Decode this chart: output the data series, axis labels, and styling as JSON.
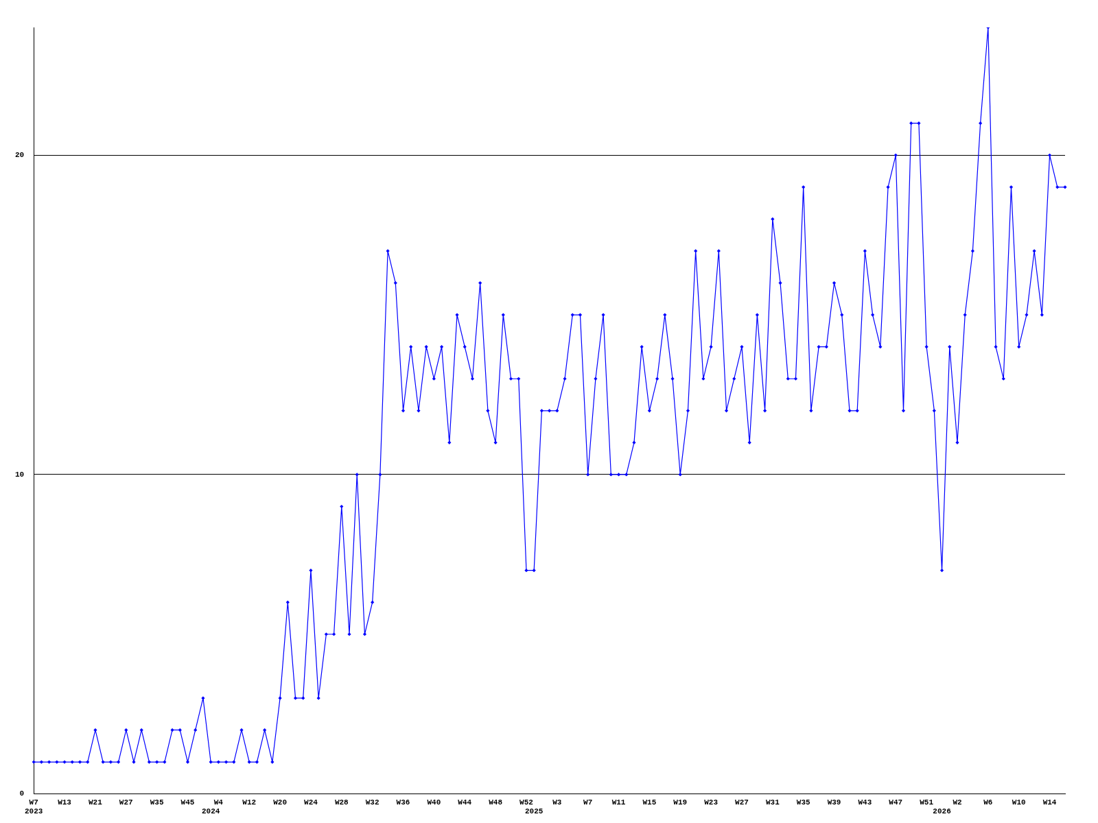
{
  "chart_data": {
    "type": "line",
    "categories": [
      "W7\n2023",
      null,
      null,
      null,
      "W13",
      null,
      null,
      null,
      "W21",
      null,
      null,
      null,
      "W27",
      null,
      null,
      null,
      "W35",
      null,
      null,
      null,
      "W45",
      null,
      null,
      "\n2024",
      "W4",
      null,
      null,
      null,
      "W12",
      null,
      null,
      null,
      "W20",
      null,
      null,
      null,
      "W24",
      null,
      null,
      null,
      "W28",
      null,
      null,
      null,
      "W32",
      null,
      null,
      null,
      "W36",
      null,
      null,
      null,
      "W40",
      null,
      null,
      null,
      "W44",
      null,
      null,
      null,
      "W48",
      null,
      null,
      null,
      "W52",
      "\n2025",
      null,
      null,
      "W3",
      null,
      null,
      null,
      "W7",
      null,
      null,
      null,
      "W11",
      null,
      null,
      null,
      "W15",
      null,
      null,
      null,
      "W19",
      null,
      null,
      null,
      "W23",
      null,
      null,
      null,
      "W27",
      null,
      null,
      null,
      "W31",
      null,
      null,
      null,
      "W35",
      null,
      null,
      null,
      "W39",
      null,
      null,
      null,
      "W43",
      null,
      null,
      null,
      "W47",
      null,
      null,
      null,
      "W51",
      null,
      "\n2026",
      null,
      "W2",
      null,
      null,
      null,
      "W6",
      null,
      null,
      null,
      "W10",
      null,
      null,
      null,
      "W14",
      null,
      null
    ],
    "series": [
      {
        "color": "#0000ff",
        "values": [
          1,
          1,
          1,
          1,
          1,
          1,
          1,
          1,
          2,
          1,
          1,
          1,
          2,
          1,
          2,
          1,
          1,
          1,
          2,
          2,
          1,
          2,
          3,
          1,
          1,
          1,
          1,
          2,
          1,
          1,
          2,
          1,
          3,
          6,
          3,
          3,
          7,
          3,
          5,
          5,
          9,
          5,
          10,
          5,
          6,
          10,
          17,
          16,
          12,
          14,
          12,
          14,
          13,
          14,
          11,
          15,
          14,
          13,
          16,
          12,
          11,
          15,
          13,
          13,
          7,
          7,
          12,
          12,
          12,
          13,
          15,
          15,
          10,
          13,
          15,
          10,
          10,
          10,
          11,
          14,
          12,
          13,
          15,
          13,
          10,
          12,
          17,
          13,
          14,
          17,
          12,
          13,
          14,
          11,
          15,
          12,
          18,
          16,
          13,
          13,
          19,
          12,
          14,
          14,
          16,
          15,
          12,
          12,
          17,
          15,
          14,
          19,
          20,
          12,
          21,
          21,
          14,
          12,
          7,
          14,
          11,
          15,
          17,
          21,
          24,
          14,
          13,
          19,
          14,
          15,
          17,
          15,
          20,
          19,
          19
        ]
      }
    ],
    "ylim": [
      0,
      24
    ],
    "yticks": [
      0,
      10,
      20
    ],
    "grid": "y",
    "legend": false,
    "marker": "diamond",
    "line_style": "solid"
  }
}
